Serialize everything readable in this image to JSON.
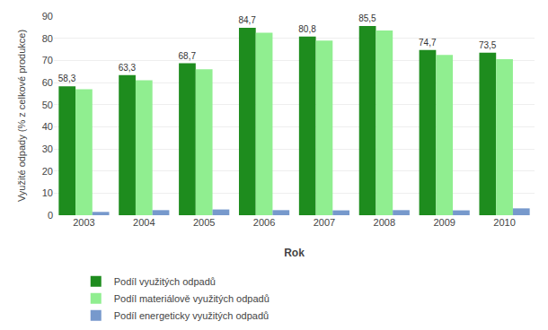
{
  "chart_data": {
    "type": "bar",
    "categories": [
      "2003",
      "2004",
      "2005",
      "2006",
      "2007",
      "2008",
      "2009",
      "2010"
    ],
    "series": [
      {
        "name": "Podíl využitých odpadů",
        "color": "#1e8c1e",
        "values": [
          58.3,
          63.3,
          68.7,
          84.7,
          80.8,
          85.5,
          74.7,
          73.5
        ],
        "data_labels": true,
        "value_labels": [
          "58,3",
          "63,3",
          "68,7",
          "84,7",
          "80,8",
          "85,5",
          "74,7",
          "73,5"
        ]
      },
      {
        "name": "Podíl materiálově využitých odpadů",
        "color": "#90ee90",
        "values": [
          57.0,
          61.0,
          66.0,
          82.5,
          79.0,
          83.5,
          72.5,
          70.5
        ]
      },
      {
        "name": "Podíl energeticky využitých odpadů",
        "color": "#7799cc",
        "values": [
          1.5,
          2.3,
          2.6,
          2.3,
          2.2,
          2.3,
          2.2,
          3.1
        ]
      }
    ],
    "xlabel": "Rok",
    "ylabel": "Využité odpady (% z celkové produkce)",
    "ylim": [
      0,
      90
    ],
    "yticks": [
      0,
      10,
      20,
      30,
      40,
      50,
      60,
      70,
      80,
      90
    ],
    "grid": true,
    "legend": "bottom"
  }
}
